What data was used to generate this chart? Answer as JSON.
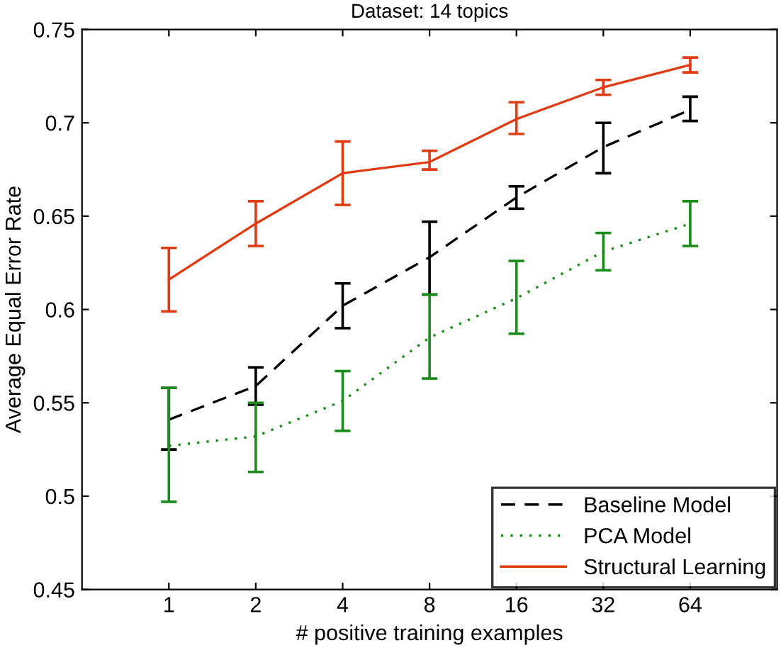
{
  "chart_data": {
    "type": "line",
    "title": "Dataset: 14 topics",
    "xlabel": "# positive training examples",
    "ylabel": "Average Equal Error Rate",
    "categories": [
      "1",
      "2",
      "4",
      "8",
      "16",
      "32",
      "64"
    ],
    "series": [
      {
        "name": "Baseline Model",
        "color": "#000000",
        "line_style": "dashed",
        "values": [
          0.541,
          0.559,
          0.602,
          0.628,
          0.66,
          0.687,
          0.707
        ],
        "errors": [
          [
            0.525,
            0.558
          ],
          [
            0.549,
            0.569
          ],
          [
            0.59,
            0.614
          ],
          [
            0.608,
            0.647
          ],
          [
            0.654,
            0.666
          ],
          [
            0.673,
            0.7
          ],
          [
            0.701,
            0.714
          ]
        ]
      },
      {
        "name": "PCA Model",
        "color": "#1a8c1a",
        "line_style": "dotted",
        "values": [
          0.527,
          0.532,
          0.551,
          0.585,
          0.606,
          0.631,
          0.646
        ],
        "errors": [
          [
            0.497,
            0.558
          ],
          [
            0.513,
            0.55
          ],
          [
            0.535,
            0.567
          ],
          [
            0.563,
            0.608
          ],
          [
            0.587,
            0.626
          ],
          [
            0.621,
            0.641
          ],
          [
            0.634,
            0.658
          ]
        ]
      },
      {
        "name": "Structural Learning",
        "color": "#e03c14",
        "line_style": "solid",
        "values": [
          0.616,
          0.646,
          0.673,
          0.679,
          0.702,
          0.719,
          0.731
        ],
        "errors": [
          [
            0.599,
            0.633
          ],
          [
            0.634,
            0.658
          ],
          [
            0.656,
            0.69
          ],
          [
            0.675,
            0.685
          ],
          [
            0.694,
            0.711
          ],
          [
            0.715,
            0.723
          ],
          [
            0.727,
            0.735
          ]
        ]
      }
    ],
    "ylim": [
      0.45,
      0.75
    ],
    "yticks": [
      0.45,
      0.5,
      0.55,
      0.6,
      0.65,
      0.7,
      0.75
    ],
    "grid": false,
    "legend": "bottom right",
    "marker": "none"
  }
}
